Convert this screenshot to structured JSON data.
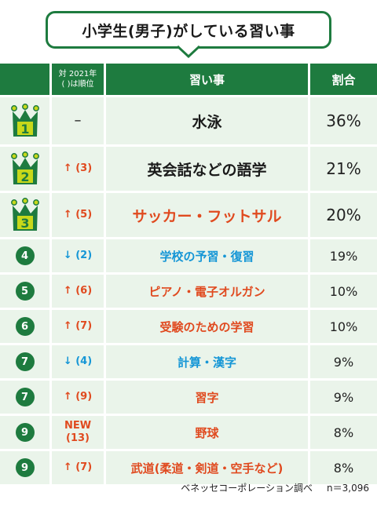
{
  "title": "小学生(男子)がしている習い事",
  "headers": {
    "change_line1": "対 2021年",
    "change_line2": "( )は順位",
    "item": "習い事",
    "ratio": "割合"
  },
  "chart_data": {
    "type": "table",
    "title": "小学生(男子)がしている習い事",
    "columns": [
      "対 2021年 ( )は順位",
      "習い事",
      "割合"
    ],
    "rows": [
      {
        "rank": "1",
        "change": "–",
        "change_dir": "none",
        "item": "水泳",
        "ratio": "36%",
        "value": 36
      },
      {
        "rank": "2",
        "change": "↑ (3)",
        "change_dir": "up",
        "item": "英会話などの語学",
        "ratio": "21%",
        "value": 21
      },
      {
        "rank": "3",
        "change": "↑ (5)",
        "change_dir": "up",
        "item": "サッカー・フットサル",
        "ratio": "20%",
        "value": 20
      },
      {
        "rank": "4",
        "change": "↓ (2)",
        "change_dir": "down",
        "item": "学校の予習・復習",
        "ratio": "19%",
        "value": 19
      },
      {
        "rank": "5",
        "change": "↑ (6)",
        "change_dir": "up",
        "item": "ピアノ・電子オルガン",
        "ratio": "10%",
        "value": 10
      },
      {
        "rank": "6",
        "change": "↑ (7)",
        "change_dir": "up",
        "item": "受験のための学習",
        "ratio": "10%",
        "value": 10
      },
      {
        "rank": "7",
        "change": "↓ (4)",
        "change_dir": "down",
        "item": "計算・漢字",
        "ratio": "9%",
        "value": 9
      },
      {
        "rank": "7",
        "change": "↑ (9)",
        "change_dir": "up",
        "item": "習字",
        "ratio": "9%",
        "value": 9
      },
      {
        "rank": "9",
        "change": "NEW",
        "change2": "(13)",
        "change_dir": "up",
        "item": "野球",
        "ratio": "8%",
        "value": 8
      },
      {
        "rank": "9",
        "change": "↑ (7)",
        "change_dir": "up",
        "item": "武道(柔道・剣道・空手など)",
        "ratio": "8%",
        "value": 8
      }
    ]
  },
  "rows_meta": [
    {
      "item_color": "#1a1a1a"
    },
    {
      "item_color": "#1a1a1a"
    },
    {
      "item_color": "#e04a1f"
    },
    {
      "item_color": "#1596d6"
    },
    {
      "item_color": "#e04a1f"
    },
    {
      "item_color": "#e04a1f"
    },
    {
      "item_color": "#1596d6"
    },
    {
      "item_color": "#e04a1f"
    },
    {
      "item_color": "#e04a1f"
    },
    {
      "item_color": "#e04a1f"
    }
  ],
  "footer": {
    "source": "ベネッセコーポレーション調べ",
    "sample": "n＝3,096"
  },
  "colors": {
    "header_green": "#1e7b3f",
    "row_bg": "#eaf4ea",
    "crown_gold": "#c8d81a",
    "up": "#e04a1f",
    "down": "#1596d6"
  }
}
